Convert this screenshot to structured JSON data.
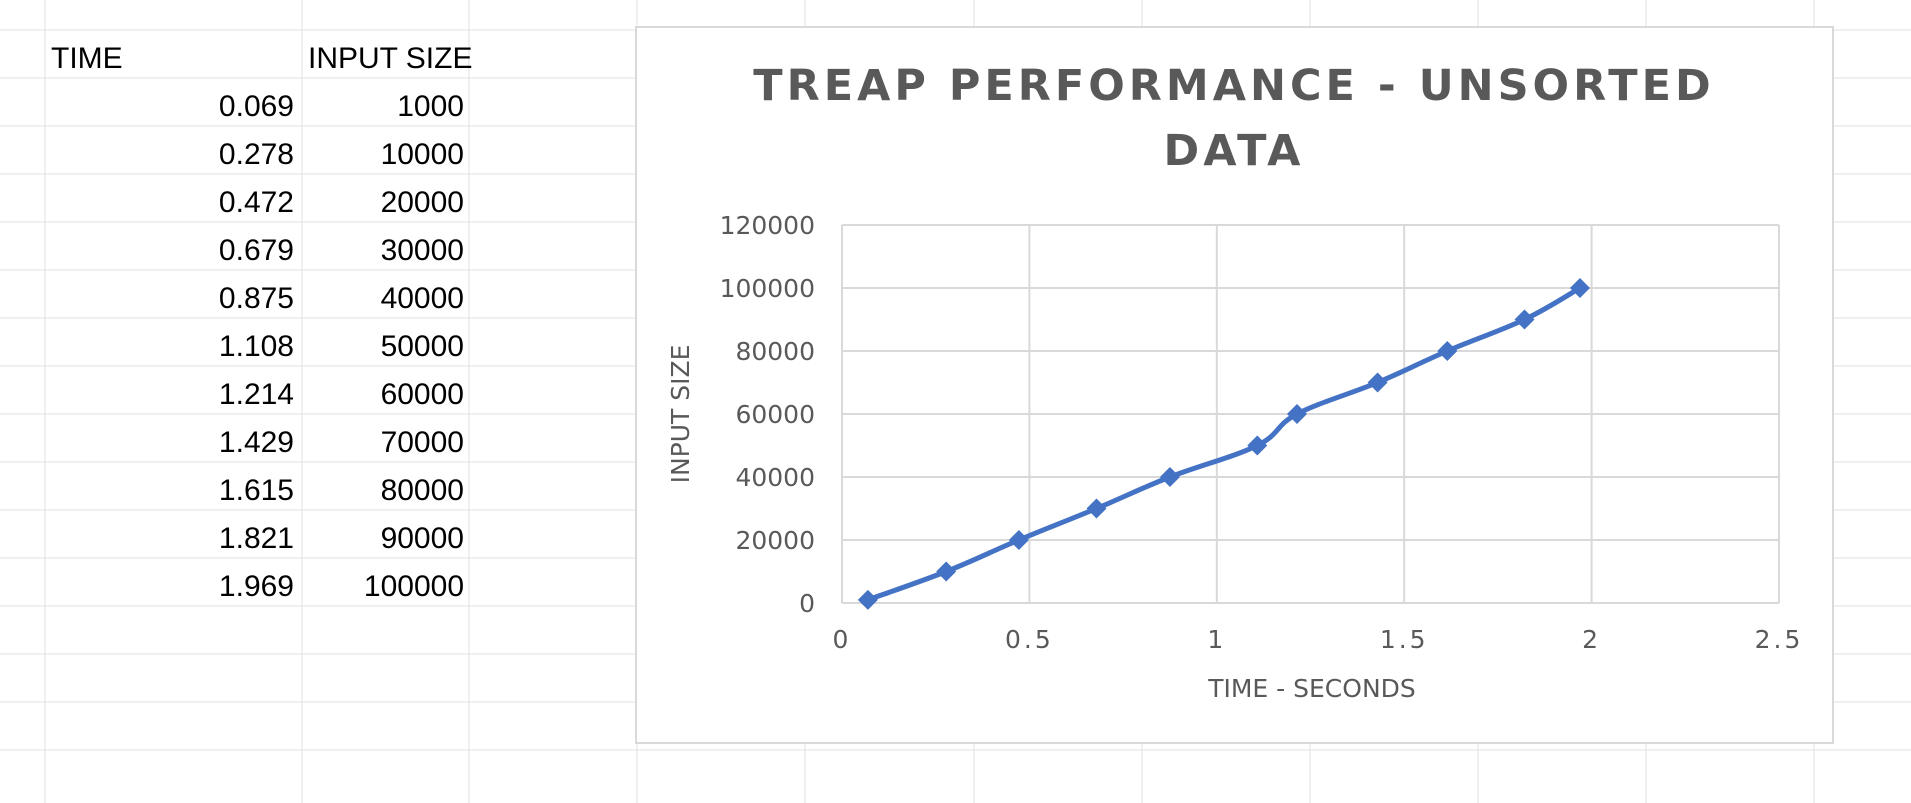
{
  "sheet": {
    "headers": {
      "time": "TIME",
      "input_size": "INPUT SIZE"
    },
    "rows": [
      {
        "time": "0.069",
        "input_size": "1000"
      },
      {
        "time": "0.278",
        "input_size": "10000"
      },
      {
        "time": "0.472",
        "input_size": "20000"
      },
      {
        "time": "0.679",
        "input_size": "30000"
      },
      {
        "time": "0.875",
        "input_size": "40000"
      },
      {
        "time": "1.108",
        "input_size": "50000"
      },
      {
        "time": "1.214",
        "input_size": "60000"
      },
      {
        "time": "1.429",
        "input_size": "70000"
      },
      {
        "time": "1.615",
        "input_size": "80000"
      },
      {
        "time": "1.821",
        "input_size": "90000"
      },
      {
        "time": "1.969",
        "input_size": "100000"
      }
    ]
  },
  "chart_data": {
    "type": "scatter",
    "title": "TREAP PERFORMANCE - UNSORTED DATA",
    "title_lines": [
      "TREAP PERFORMANCE - UNSORTED",
      "DATA"
    ],
    "xlabel": "TIME - SECONDS",
    "ylabel": "INPUT SIZE",
    "xlim": [
      0,
      2.5
    ],
    "ylim": [
      0,
      120000
    ],
    "x_ticks": [
      0,
      0.5,
      1,
      1.5,
      2,
      2.5
    ],
    "x_tick_labels": [
      "0",
      "0.5",
      "1",
      "1.5",
      "2",
      "2.5"
    ],
    "y_ticks": [
      0,
      20000,
      40000,
      60000,
      80000,
      100000,
      120000
    ],
    "y_tick_labels": [
      "0",
      "20000",
      "40000",
      "60000",
      "80000",
      "100000",
      "120000"
    ],
    "grid": true,
    "legend": "none",
    "line_style": "smoothed line with diamond markers",
    "series": [
      {
        "color": "#4472c4",
        "marker": "diamond",
        "x": [
          0.069,
          0.278,
          0.472,
          0.679,
          0.875,
          1.108,
          1.214,
          1.429,
          1.615,
          1.821,
          1.969
        ],
        "y": [
          1000,
          10000,
          20000,
          30000,
          40000,
          50000,
          60000,
          70000,
          80000,
          90000,
          100000
        ]
      }
    ]
  }
}
